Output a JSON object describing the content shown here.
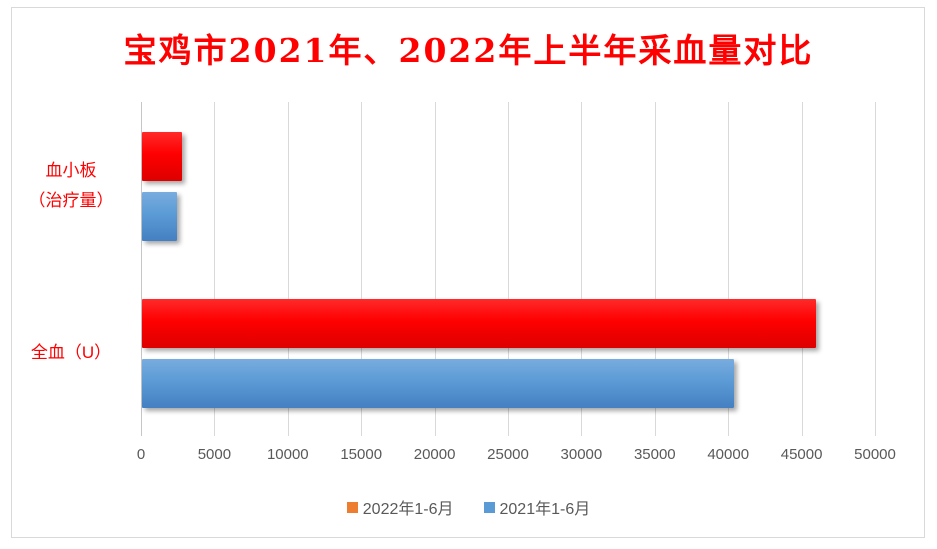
{
  "chart_data": {
    "type": "bar",
    "orientation": "horizontal",
    "title": "宝鸡市2021年、2022年上半年采血量对比",
    "categories": [
      "血小板（治疗量）",
      "全血（U）"
    ],
    "category_label_lines": [
      [
        "血小板",
        "（治疗量）"
      ],
      [
        "全血（U）"
      ]
    ],
    "series": [
      {
        "name": "2022年1-6月",
        "values": [
          2700,
          45900
        ],
        "bar_gradient": [
          "#FF2A2A",
          "#FE0000",
          "#DD0000"
        ],
        "legend_color": "#ED7D31"
      },
      {
        "name": "2021年1-6月",
        "values": [
          2400,
          40300
        ],
        "bar_gradient": [
          "#79ACDF",
          "#5B9BD5",
          "#4480C2"
        ],
        "legend_color": "#5B9BD5"
      }
    ],
    "xlim": [
      0,
      50000
    ],
    "x_ticks": [
      0,
      5000,
      10000,
      15000,
      20000,
      25000,
      30000,
      35000,
      40000,
      45000,
      50000
    ],
    "grid": "vertical-only",
    "legend_position": "bottom-center"
  },
  "colors": {
    "background": "#FFFFFF",
    "chart_border": "#D9D9D9",
    "title_text": "#FF0000",
    "category_label_text": "#FF0000",
    "tick_label_text": "#595959",
    "legend_text": "#595959",
    "gridline": "#D9D9D9",
    "value_axis_line": "#C6C6C6"
  }
}
